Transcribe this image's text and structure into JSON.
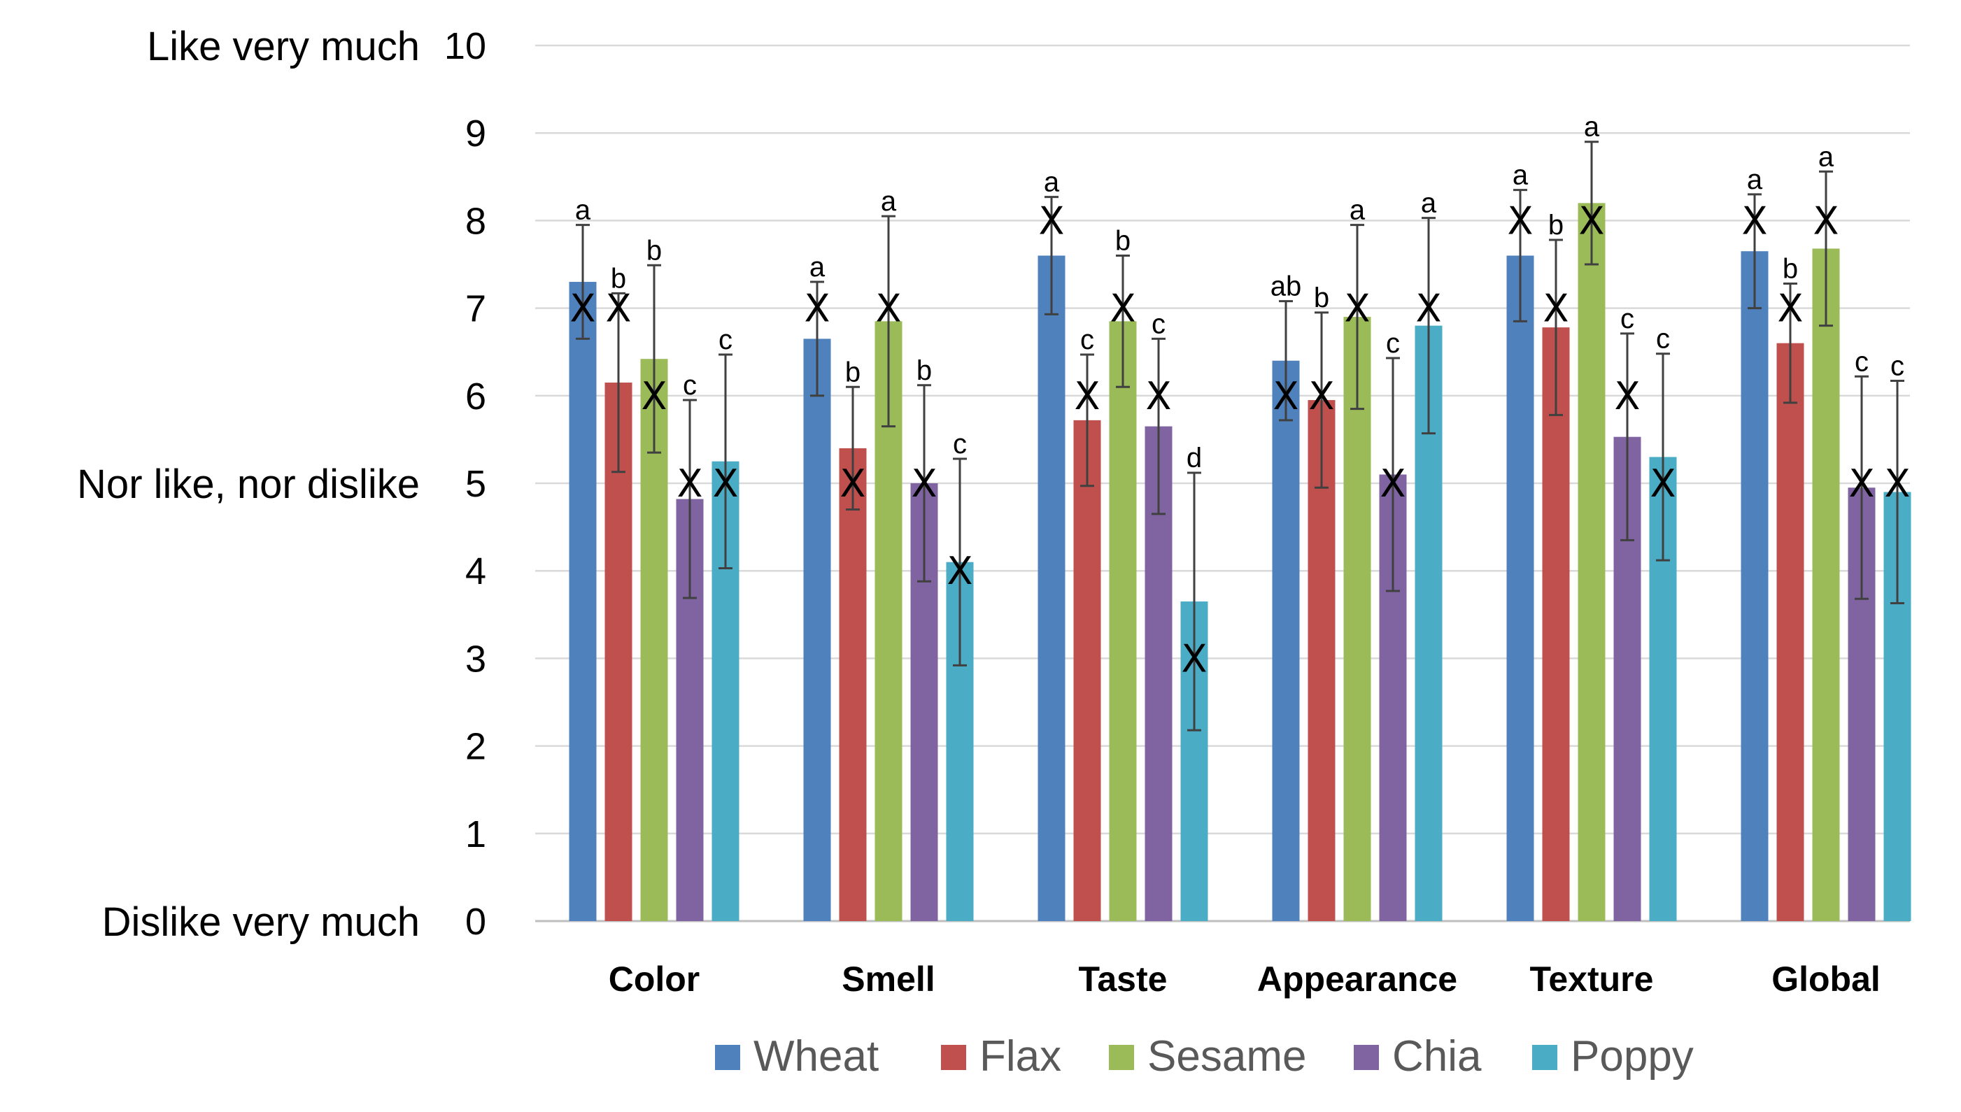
{
  "chart_data": {
    "type": "bar",
    "title": "",
    "xlabel": "",
    "ylabel": "",
    "ylim": [
      0,
      10
    ],
    "grid": true,
    "legend_position": "bottom",
    "y_ticks": [
      "0",
      "1",
      "2",
      "3",
      "4",
      "5",
      "6",
      "7",
      "8",
      "9",
      "10"
    ],
    "scale_labels": [
      {
        "value": 10,
        "text": "Like very much"
      },
      {
        "value": 5,
        "text": "Nor like, nor dislike"
      },
      {
        "value": 0,
        "text": "Dislike very much"
      }
    ],
    "categories": [
      "Color",
      "Smell",
      "Taste",
      "Appearance",
      "Texture",
      "Global"
    ],
    "series": [
      {
        "name": "Wheat",
        "color": "#4F81BD",
        "values": [
          7.3,
          6.65,
          7.6,
          6.4,
          7.6,
          7.65
        ],
        "error": [
          0.65,
          0.65,
          0.67,
          0.68,
          0.75,
          0.65
        ],
        "median": [
          7,
          7,
          8,
          6,
          8,
          8
        ],
        "letters": [
          "a",
          "a",
          "a",
          "ab",
          "a",
          "a"
        ]
      },
      {
        "name": "Flax",
        "color": "#C0504D",
        "values": [
          6.15,
          5.4,
          5.72,
          5.95,
          6.78,
          6.6
        ],
        "error": [
          1.02,
          0.7,
          0.75,
          1.0,
          1.0,
          0.68
        ],
        "median": [
          7,
          5,
          6,
          6,
          7,
          7
        ],
        "letters": [
          "b",
          "b",
          "c",
          "b",
          "b",
          "b"
        ]
      },
      {
        "name": "Sesame",
        "color": "#9BBB59",
        "values": [
          6.42,
          6.85,
          6.85,
          6.9,
          8.2,
          7.68
        ],
        "error": [
          1.07,
          1.2,
          0.75,
          1.05,
          0.7,
          0.88
        ],
        "median": [
          6,
          7,
          7,
          7,
          8,
          8
        ],
        "letters": [
          "b",
          "a",
          "b",
          "a",
          "a",
          "a"
        ]
      },
      {
        "name": "Chia",
        "color": "#8064A2",
        "values": [
          4.82,
          5.0,
          5.65,
          5.1,
          5.53,
          4.95
        ],
        "error": [
          1.13,
          1.12,
          1.0,
          1.33,
          1.18,
          1.27
        ],
        "median": [
          5,
          5,
          6,
          5,
          6,
          5
        ],
        "letters": [
          "c",
          "b",
          "c",
          "c",
          "c",
          "c"
        ]
      },
      {
        "name": "Poppy",
        "color": "#4BACC6",
        "values": [
          5.25,
          4.1,
          3.65,
          6.8,
          5.3,
          4.9
        ],
        "error": [
          1.22,
          1.18,
          1.47,
          1.23,
          1.18,
          1.27
        ],
        "median": [
          5,
          4,
          3,
          7,
          5,
          5
        ],
        "letters": [
          "c",
          "c",
          "d",
          "a",
          "c",
          "c"
        ]
      }
    ],
    "median_marker": "X"
  }
}
